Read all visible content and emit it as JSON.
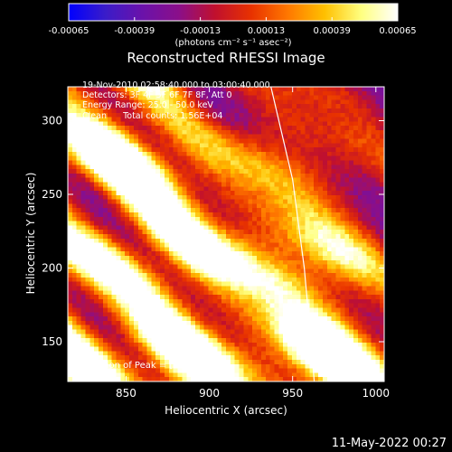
{
  "chart_data": {
    "type": "heatmap",
    "title": "Reconstructed RHESSI Image",
    "xlabel": "Heliocentric X (arcsec)",
    "ylabel": "Heliocentric Y (arcsec)",
    "xlim": [
      815,
      1005
    ],
    "ylim": [
      123,
      323
    ],
    "x_ticks": [
      850,
      900,
      950,
      1000
    ],
    "y_ticks": [
      150,
      200,
      250,
      300
    ],
    "colorbar": {
      "min": -0.00065,
      "max": 0.00065,
      "ticks": [
        "-0.00065",
        "-0.00039",
        "-0.00013",
        "0.00013",
        "0.00039",
        "0.00065"
      ],
      "unit_label": "(photons cm⁻² s⁻¹ asec⁻²)",
      "colors": [
        "#0000ff",
        "#3a1cc9",
        "#6a12aa",
        "#8a0f8a",
        "#c0102e",
        "#e83200",
        "#ff7800",
        "#ffc000",
        "#ffff80",
        "#ffffff"
      ]
    },
    "info": {
      "time": "19-Nov-2010 02:58:40.000 to 03:00:40.000",
      "detectors": "Detectors: 3F 4F 5F 6F 7F 8F, Att 0",
      "energy": "Energy Range: 25.0 - 50.0 keV",
      "clean": "Clean      Total counts: 1.56E+04",
      "peak": "Position of Peak = [934,313]"
    },
    "peak": [
      934,
      313
    ],
    "stripes": [
      {
        "x": 815,
        "y": 222,
        "peak": 0.00062
      },
      {
        "x": 815,
        "y": 143,
        "peak": 0.00058
      },
      {
        "x": 815,
        "y": 300,
        "peak": 0.0004
      }
    ],
    "stripe_slope": -1.0,
    "stripe_spacing": 78,
    "limb": [
      [
        937,
        323
      ],
      [
        950,
        260
      ],
      [
        957,
        200
      ],
      [
        961,
        150
      ],
      [
        963,
        123
      ]
    ]
  },
  "footer": {
    "timestamp": "11-May-2022 00:27"
  }
}
